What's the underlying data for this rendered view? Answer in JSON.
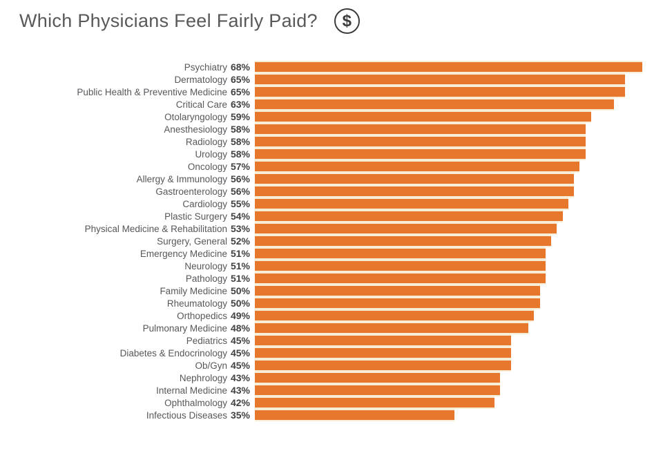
{
  "title": "Which Physicians Feel Fairly Paid?",
  "icon": {
    "name": "dollar-circle-icon",
    "symbol": "$"
  },
  "colors": {
    "bar": "#E8772E",
    "gap": "#F8EDD6",
    "title": "#58595B",
    "label": "#56575A",
    "percent": "#414042",
    "icon": "#3B3B3D"
  },
  "chart_data": {
    "type": "bar",
    "orientation": "horizontal",
    "title": "Which Physicians Feel Fairly Paid?",
    "xlabel": "",
    "ylabel": "",
    "unit": "%",
    "xlim": [
      0,
      68
    ],
    "grid": false,
    "legend": false,
    "categories": [
      "Psychiatry",
      "Dermatology",
      "Public Health & Preventive Medicine",
      "Critical Care",
      "Otolaryngology",
      "Anesthesiology",
      "Radiology",
      "Urology",
      "Oncology",
      "Allergy & Immunology",
      "Gastroenterology",
      "Cardiology",
      "Plastic Surgery",
      "Physical Medicine & Rehabilitation",
      "Surgery, General",
      "Emergency Medicine",
      "Neurology",
      "Pathology",
      "Family Medicine",
      "Rheumatology",
      "Orthopedics",
      "Pulmonary Medicine",
      "Pediatrics",
      "Diabetes & Endocrinology",
      "Ob/Gyn",
      "Nephrology",
      "Internal Medicine",
      "Ophthalmology",
      "Infectious Diseases"
    ],
    "values": [
      68,
      65,
      65,
      63,
      59,
      58,
      58,
      58,
      57,
      56,
      56,
      55,
      54,
      53,
      52,
      51,
      51,
      51,
      50,
      50,
      49,
      48,
      45,
      45,
      45,
      43,
      43,
      42,
      35
    ]
  }
}
